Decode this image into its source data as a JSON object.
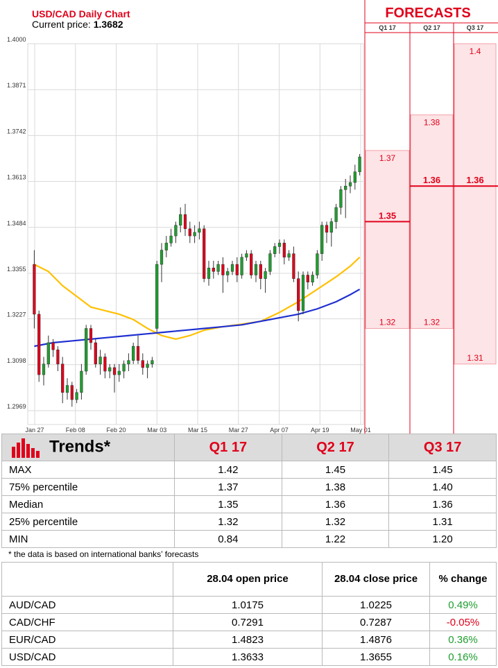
{
  "chart_data": {
    "type": "candlestick",
    "title": "USD/CAD Daily Chart",
    "current_price_label": "Current price:",
    "current_price": "1.3682",
    "y_ticks": [
      "1.4000",
      "1.3871",
      "1.3742",
      "1.3613",
      "1.3484",
      "1.3355",
      "1.3227",
      "1.3098",
      "1.2969"
    ],
    "ylim": [
      1.2969,
      1.4
    ],
    "x_ticks": [
      "Jan 27",
      "Feb 08",
      "Feb 20",
      "Mar 03",
      "Mar 15",
      "Mar 27",
      "Apr 07",
      "Apr 19",
      "May 01"
    ],
    "grid": true,
    "candles": [
      [
        1.338,
        1.342,
        1.32,
        1.324
      ],
      [
        1.324,
        1.325,
        1.305,
        1.307
      ],
      [
        1.307,
        1.312,
        1.304,
        1.31
      ],
      [
        1.31,
        1.318,
        1.309,
        1.316
      ],
      [
        1.316,
        1.317,
        1.312,
        1.314
      ],
      [
        1.314,
        1.315,
        1.308,
        1.31
      ],
      [
        1.31,
        1.312,
        1.299,
        1.302
      ],
      [
        1.302,
        1.306,
        1.3,
        1.304
      ],
      [
        1.304,
        1.305,
        1.298,
        1.3
      ],
      [
        1.3,
        1.303,
        1.299,
        1.302
      ],
      [
        1.302,
        1.31,
        1.3,
        1.308
      ],
      [
        1.308,
        1.321,
        1.307,
        1.32
      ],
      [
        1.32,
        1.321,
        1.314,
        1.316
      ],
      [
        1.316,
        1.317,
        1.309,
        1.31
      ],
      [
        1.31,
        1.314,
        1.307,
        1.312
      ],
      [
        1.312,
        1.313,
        1.306,
        1.308
      ],
      [
        1.308,
        1.31,
        1.306,
        1.309
      ],
      [
        1.309,
        1.31,
        1.302,
        1.307
      ],
      [
        1.307,
        1.31,
        1.305,
        1.308
      ],
      [
        1.308,
        1.311,
        1.306,
        1.31
      ],
      [
        1.31,
        1.313,
        1.308,
        1.311
      ],
      [
        1.311,
        1.316,
        1.31,
        1.315
      ],
      [
        1.315,
        1.318,
        1.31,
        1.311
      ],
      [
        1.311,
        1.313,
        1.307,
        1.309
      ],
      [
        1.309,
        1.311,
        1.306,
        1.31
      ],
      [
        1.31,
        1.312,
        1.309,
        1.311
      ],
      [
        1.32,
        1.339,
        1.319,
        1.338
      ],
      [
        1.338,
        1.344,
        1.333,
        1.342
      ],
      [
        1.342,
        1.346,
        1.34,
        1.344
      ],
      [
        1.344,
        1.348,
        1.343,
        1.346
      ],
      [
        1.346,
        1.35,
        1.344,
        1.349
      ],
      [
        1.349,
        1.354,
        1.347,
        1.352
      ],
      [
        1.352,
        1.355,
        1.346,
        1.348
      ],
      [
        1.348,
        1.35,
        1.344,
        1.346
      ],
      [
        1.346,
        1.349,
        1.344,
        1.347
      ],
      [
        1.347,
        1.35,
        1.345,
        1.348
      ],
      [
        1.348,
        1.349,
        1.333,
        1.334
      ],
      [
        1.334,
        1.339,
        1.332,
        1.337
      ],
      [
        1.337,
        1.339,
        1.334,
        1.336
      ],
      [
        1.336,
        1.339,
        1.335,
        1.338
      ],
      [
        1.338,
        1.34,
        1.33,
        1.335
      ],
      [
        1.335,
        1.337,
        1.333,
        1.336
      ],
      [
        1.336,
        1.339,
        1.335,
        1.338
      ],
      [
        1.338,
        1.34,
        1.333,
        1.335
      ],
      [
        1.335,
        1.341,
        1.334,
        1.34
      ],
      [
        1.34,
        1.342,
        1.339,
        1.341
      ],
      [
        1.341,
        1.342,
        1.334,
        1.335
      ],
      [
        1.335,
        1.339,
        1.333,
        1.338
      ],
      [
        1.338,
        1.339,
        1.331,
        1.334
      ],
      [
        1.334,
        1.337,
        1.33,
        1.336
      ],
      [
        1.336,
        1.342,
        1.335,
        1.341
      ],
      [
        1.341,
        1.344,
        1.34,
        1.343
      ],
      [
        1.343,
        1.345,
        1.341,
        1.344
      ],
      [
        1.344,
        1.345,
        1.338,
        1.34
      ],
      [
        1.34,
        1.342,
        1.339,
        1.341
      ],
      [
        1.341,
        1.343,
        1.333,
        1.334
      ],
      [
        1.334,
        1.336,
        1.322,
        1.325
      ],
      [
        1.325,
        1.336,
        1.324,
        1.335
      ],
      [
        1.335,
        1.336,
        1.331,
        1.333
      ],
      [
        1.333,
        1.336,
        1.332,
        1.335
      ],
      [
        1.335,
        1.342,
        1.334,
        1.341
      ],
      [
        1.341,
        1.35,
        1.339,
        1.349
      ],
      [
        1.349,
        1.35,
        1.344,
        1.347
      ],
      [
        1.347,
        1.351,
        1.343,
        1.35
      ],
      [
        1.35,
        1.355,
        1.348,
        1.354
      ],
      [
        1.354,
        1.36,
        1.352,
        1.359
      ],
      [
        1.359,
        1.362,
        1.351,
        1.36
      ],
      [
        1.36,
        1.363,
        1.358,
        1.361
      ],
      [
        1.361,
        1.366,
        1.359,
        1.364
      ],
      [
        1.364,
        1.369,
        1.363,
        1.3682
      ]
    ],
    "moving_averages": [
      {
        "color": "#ffc000",
        "values": [
          [
            0,
            1.338
          ],
          [
            3,
            1.336
          ],
          [
            6,
            1.332
          ],
          [
            9,
            1.329
          ],
          [
            12,
            1.326
          ],
          [
            15,
            1.325
          ],
          [
            18,
            1.324
          ],
          [
            21,
            1.3225
          ],
          [
            24,
            1.32
          ],
          [
            27,
            1.318
          ],
          [
            30,
            1.317
          ],
          [
            33,
            1.318
          ],
          [
            36,
            1.3195
          ],
          [
            40,
            1.3205
          ],
          [
            44,
            1.3212
          ],
          [
            48,
            1.322
          ],
          [
            52,
            1.3245
          ],
          [
            56,
            1.3275
          ],
          [
            60,
            1.331
          ],
          [
            64,
            1.3345
          ],
          [
            67,
            1.3375
          ],
          [
            69,
            1.34
          ]
        ]
      },
      {
        "color": "#1f2fd0",
        "values": [
          [
            0,
            1.315
          ],
          [
            4,
            1.316
          ],
          [
            8,
            1.3165
          ],
          [
            12,
            1.317
          ],
          [
            16,
            1.3175
          ],
          [
            20,
            1.318
          ],
          [
            24,
            1.3185
          ],
          [
            28,
            1.319
          ],
          [
            32,
            1.3195
          ],
          [
            36,
            1.32
          ],
          [
            40,
            1.3205
          ],
          [
            44,
            1.321
          ],
          [
            48,
            1.322
          ],
          [
            52,
            1.323
          ],
          [
            56,
            1.324
          ],
          [
            60,
            1.3255
          ],
          [
            64,
            1.3275
          ],
          [
            67,
            1.3295
          ],
          [
            69,
            1.331
          ]
        ]
      }
    ],
    "forecasts": {
      "title": "FORECASTS",
      "columns": [
        {
          "label": "Q1 17",
          "top": 1.37,
          "bottom": 1.32,
          "median": 1.35,
          "top_label": "1.37",
          "bottom_label": "1.32",
          "median_label": "1.35"
        },
        {
          "label": "Q2 17",
          "top": 1.38,
          "bottom": 1.32,
          "median": 1.36,
          "top_label": "1.38",
          "bottom_label": "1.32",
          "median_label": "1.36"
        },
        {
          "label": "Q3 17",
          "top": 1.4,
          "bottom": 1.31,
          "median": 1.36,
          "top_label": "1.4",
          "bottom_label": "1.31",
          "median_label": "1.36"
        }
      ]
    }
  },
  "trends": {
    "title": "Trends*",
    "columns": [
      "Q1 17",
      "Q2 17",
      "Q3 17"
    ],
    "rows": [
      {
        "label": "MAX",
        "values": [
          "1.42",
          "1.45",
          "1.45"
        ]
      },
      {
        "label": "75% percentile",
        "values": [
          "1.37",
          "1.38",
          "1.40"
        ]
      },
      {
        "label": "Median",
        "values": [
          "1.35",
          "1.36",
          "1.36"
        ]
      },
      {
        "label": "25% percentile",
        "values": [
          "1.32",
          "1.32",
          "1.31"
        ]
      },
      {
        "label": "MIN",
        "values": [
          "0.84",
          "1.22",
          "1.20"
        ]
      }
    ],
    "footnote": "* the data is based on international banks’ forecasts"
  },
  "fx_table": {
    "headers": [
      "",
      "28.04 open price",
      "28.04 close price",
      "% change"
    ],
    "rows": [
      {
        "pair": "AUD/CAD",
        "open": "1.0175",
        "close": "1.0225",
        "change": "0.49%",
        "dir": "pos"
      },
      {
        "pair": "CAD/CHF",
        "open": "0.7291",
        "close": "0.7287",
        "change": "-0.05%",
        "dir": "neg"
      },
      {
        "pair": "EUR/CAD",
        "open": "1.4823",
        "close": "1.4876",
        "change": "0.36%",
        "dir": "pos"
      },
      {
        "pair": "USD/CAD",
        "open": "1.3633",
        "close": "1.3655",
        "change": "0.16%",
        "dir": "pos"
      }
    ]
  },
  "colors": {
    "up": "#1e9e2e",
    "down": "#e0001b",
    "accent": "#e0001b",
    "forecast_fill": "#fde4e6"
  }
}
